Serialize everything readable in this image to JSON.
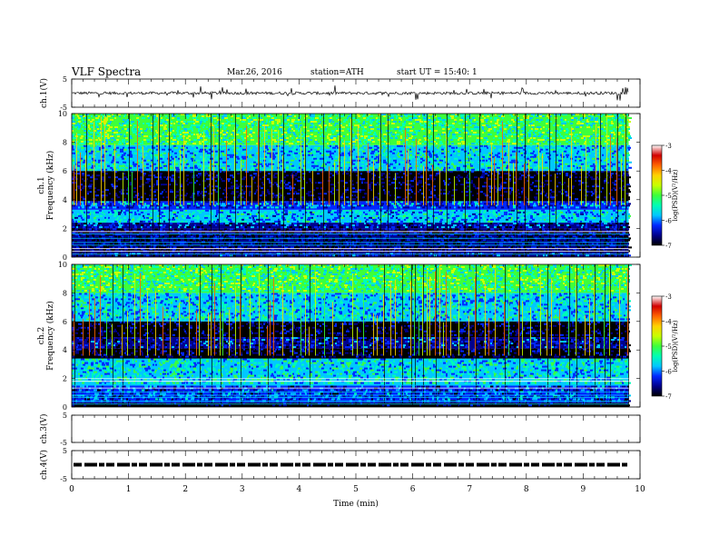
{
  "header": {
    "title": "VLF  Spectra",
    "date": "Mar.26, 2016",
    "station": "station=ATH",
    "start_time": "start  UT  =   15:40: 1"
  },
  "chart_data": {
    "type": "heatmap",
    "x_axis": {
      "label": "Time  (min)",
      "range": [
        0,
        10
      ],
      "ticks": [
        "0",
        "1",
        "2",
        "3",
        "4",
        "5",
        "6",
        "7",
        "8",
        "9",
        "10"
      ],
      "data_end": 9.8
    },
    "panels": [
      {
        "id": "ch1",
        "kind": "waveform",
        "ylabel": "ch.1(V)",
        "ylim": [
          -5,
          5
        ],
        "yticks": [
          "5",
          "-5"
        ],
        "trace_level": 0,
        "trace_noise": 0.5,
        "trace_color": "#000000"
      },
      {
        "id": "ch1-spec",
        "kind": "spectrogram",
        "ylabel_lines": [
          "ch.1",
          "Frequency  (kHz)"
        ],
        "ylim": [
          0,
          10
        ],
        "yticks": [
          "0",
          "2",
          "4",
          "6",
          "8",
          "10"
        ],
        "colorbar": {
          "label": "log(PSD)(V²/Hz)",
          "range": [
            -7,
            -3
          ],
          "ticks": [
            "-3",
            "-4",
            "-5",
            "-6",
            "-7"
          ]
        },
        "bands": [
          {
            "from": 0,
            "to": 0.3,
            "level": -6.3
          },
          {
            "from": 0.3,
            "to": 2.0,
            "level": -6.6
          },
          {
            "from": 2.0,
            "to": 2.4,
            "level": -6.2
          },
          {
            "from": 2.4,
            "to": 3.3,
            "level": -5.6
          },
          {
            "from": 3.3,
            "to": 3.9,
            "level": -5.9
          },
          {
            "from": 3.9,
            "to": 6.0,
            "level": -6.7
          },
          {
            "from": 6.0,
            "to": 7.8,
            "level": -5.5
          },
          {
            "from": 7.8,
            "to": 10.0,
            "level": -5.0
          }
        ]
      },
      {
        "id": "ch2-spec",
        "kind": "spectrogram",
        "ylabel_lines": [
          "ch.2",
          "Frequency  (kHz)"
        ],
        "ylim": [
          0,
          10
        ],
        "yticks": [
          "0",
          "2",
          "4",
          "6",
          "8",
          "10"
        ],
        "colorbar": {
          "label": "log(PSD)(V²/Hz)",
          "range": [
            -7,
            -3
          ],
          "ticks": [
            "-3",
            "-4",
            "-5",
            "-6",
            "-7"
          ]
        },
        "bands": [
          {
            "from": 0,
            "to": 0.3,
            "level": -6.8
          },
          {
            "from": 0.3,
            "to": 1.5,
            "level": -6.0
          },
          {
            "from": 1.5,
            "to": 3.4,
            "level": -5.4
          },
          {
            "from": 3.4,
            "to": 4.1,
            "level": -6.7
          },
          {
            "from": 4.1,
            "to": 4.9,
            "level": -6.3
          },
          {
            "from": 4.9,
            "to": 6.0,
            "level": -6.7
          },
          {
            "from": 6.0,
            "to": 8.0,
            "level": -5.5
          },
          {
            "from": 8.0,
            "to": 10.0,
            "level": -5.0
          }
        ]
      },
      {
        "id": "ch3",
        "kind": "waveform",
        "ylabel": "ch.3(V)",
        "ylim": [
          -5,
          5
        ],
        "yticks": [
          "5",
          "-5"
        ],
        "trace": false
      },
      {
        "id": "ch4",
        "kind": "waveform",
        "ylabel": "ch.4(V)",
        "ylim": [
          -5,
          5
        ],
        "yticks": [
          "5",
          "-5"
        ],
        "trace_level": 0,
        "trace_style": "dashed",
        "trace_color": "#000000"
      }
    ],
    "colormap": [
      "#000000",
      "#00008c",
      "#0028ff",
      "#00c8ff",
      "#00ffb4",
      "#3cff3c",
      "#c8ff00",
      "#ffd200",
      "#ff6400",
      "#d20000",
      "#ffffff"
    ]
  }
}
